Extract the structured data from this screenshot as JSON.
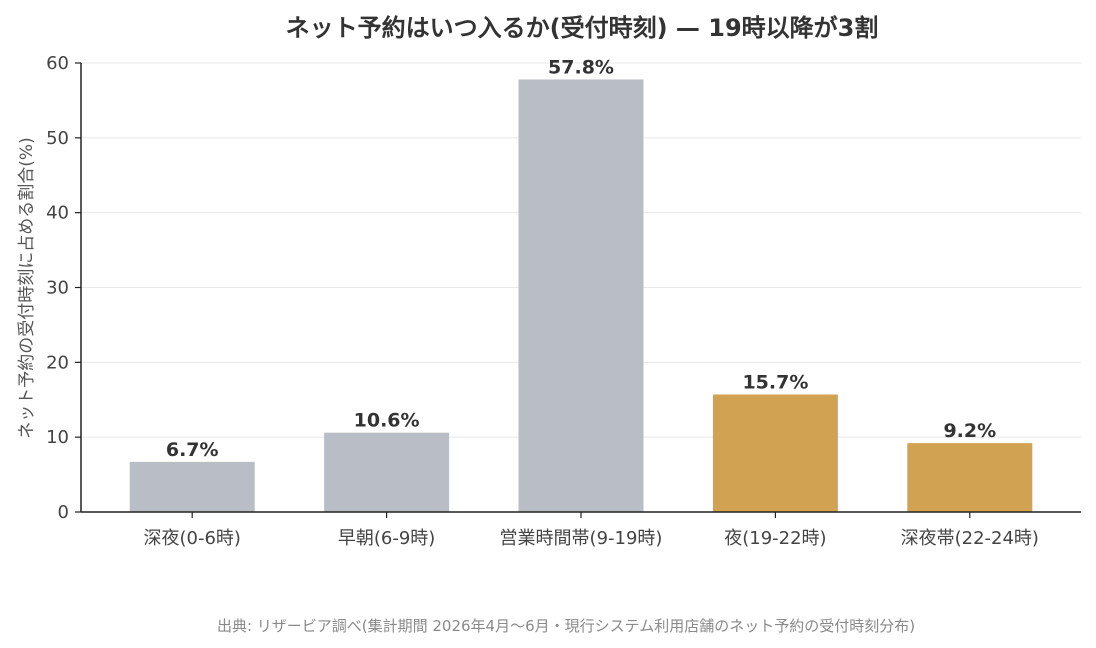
{
  "chart_data": {
    "type": "bar",
    "title": "ネット予約はいつ入るか(受付時刻) — 19時以降が3割",
    "xlabel": "",
    "ylabel": "ネット予約の受付時刻に占める割合(%)",
    "categories": [
      "深夜(0-6時)",
      "早朝(6-9時)",
      "営業時間帯(9-19時)",
      "夜(19-22時)",
      "深夜帯(22-24時)"
    ],
    "values": [
      6.7,
      10.6,
      57.8,
      15.7,
      9.2
    ],
    "data_labels": [
      "6.7%",
      "10.6%",
      "57.8%",
      "15.7%",
      "9.2%"
    ],
    "colors": [
      "#b9bec6",
      "#b9bec6",
      "#b9bec6",
      "#d1a252",
      "#d1a252"
    ],
    "ylim": [
      0,
      60
    ],
    "yticks": [
      0,
      10,
      20,
      30,
      40,
      50,
      60
    ],
    "grid": true,
    "source": "出典: リザービア調べ(集計期間 2026年4月〜6月・現行システム利用店舗のネット予約の受付時刻分布)"
  }
}
